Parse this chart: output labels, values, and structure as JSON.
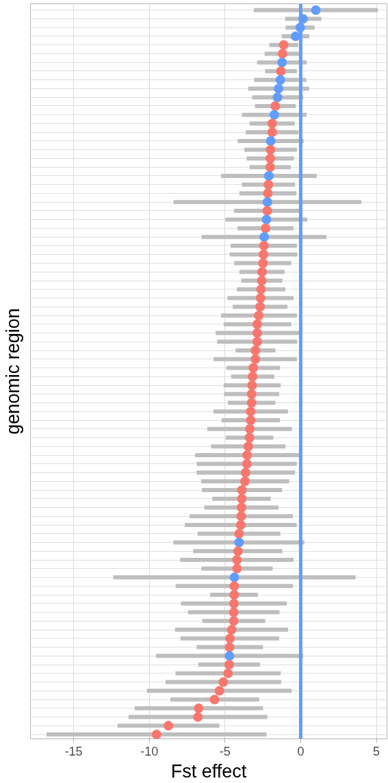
{
  "chart_data": {
    "type": "scatter",
    "orientation": "horizontal",
    "xlabel": "Fst effect",
    "ylabel": "genomic region",
    "categories": [
      null,
      null,
      null,
      null,
      null,
      null,
      null,
      null,
      null,
      null,
      null,
      null,
      null,
      null,
      null,
      null,
      null,
      null,
      null,
      null,
      null,
      null,
      null,
      null,
      null,
      null,
      null,
      null,
      null,
      null,
      null,
      null,
      null,
      null,
      null,
      null,
      null,
      null,
      null,
      null,
      null,
      null,
      null,
      null,
      null,
      null,
      null,
      null,
      null,
      null,
      null,
      null,
      null,
      null,
      null,
      null,
      null,
      null,
      null,
      null,
      null,
      null,
      null,
      null,
      null,
      null,
      null,
      null,
      null,
      null,
      null,
      null,
      null,
      null,
      null,
      null,
      null,
      null,
      null,
      null,
      null,
      null,
      null,
      null
    ],
    "values": [
      1.0,
      0.16,
      -0.03,
      -0.34,
      -1.12,
      -1.2,
      -1.23,
      -1.31,
      -1.34,
      -1.46,
      -1.53,
      -1.68,
      -1.74,
      -1.88,
      -1.88,
      -1.98,
      -1.99,
      -2.01,
      -2.02,
      -2.1,
      -2.13,
      -2.17,
      -2.2,
      -2.21,
      -2.26,
      -2.32,
      -2.41,
      -2.43,
      -2.46,
      -2.49,
      -2.55,
      -2.57,
      -2.62,
      -2.65,
      -2.68,
      -2.77,
      -2.87,
      -2.87,
      -2.87,
      -2.99,
      -2.99,
      -3.13,
      -3.18,
      -3.21,
      -3.24,
      -3.24,
      -3.3,
      -3.3,
      -3.36,
      -3.38,
      -3.46,
      -3.54,
      -3.55,
      -3.64,
      -3.68,
      -3.88,
      -3.89,
      -3.91,
      -3.93,
      -3.96,
      -4.07,
      -4.07,
      -4.14,
      -4.21,
      -4.21,
      -4.38,
      -4.39,
      -4.39,
      -4.41,
      -4.42,
      -4.42,
      -4.56,
      -4.67,
      -4.7,
      -4.7,
      -4.72,
      -4.8,
      -5.11,
      -5.37,
      -5.69,
      -6.74,
      -6.79,
      -8.74,
      -9.52
    ],
    "errors": [
      [
        -3.1,
        5.1
      ],
      [
        -1.03,
        1.36
      ],
      [
        -1.0,
        0.92
      ],
      [
        -1.25,
        0.58
      ],
      [
        -2.07,
        -0.16
      ],
      [
        -2.38,
        -0.11
      ],
      [
        -2.88,
        0.4
      ],
      [
        -2.34,
        -0.25
      ],
      [
        -3.07,
        0.37
      ],
      [
        -3.47,
        0.56
      ],
      [
        -3.21,
        0.17
      ],
      [
        -3.02,
        -0.33
      ],
      [
        -3.89,
        0.39
      ],
      [
        -3.38,
        -0.39
      ],
      [
        -3.63,
        -0.14
      ],
      [
        -4.16,
        0.2
      ],
      [
        -3.72,
        -0.25
      ],
      [
        -3.57,
        -0.44
      ],
      [
        -3.38,
        -0.65
      ],
      [
        -5.26,
        1.06
      ],
      [
        -3.89,
        -0.37
      ],
      [
        -4.05,
        -0.28
      ],
      [
        -8.4,
        4.0
      ],
      [
        -4.41,
        -0.11
      ],
      [
        -4.97,
        0.44
      ],
      [
        -4.17,
        -0.47
      ],
      [
        -6.54,
        1.7
      ],
      [
        -4.63,
        -0.25
      ],
      [
        -4.69,
        -0.22
      ],
      [
        -4.39,
        -0.62
      ],
      [
        -4.05,
        -1.06
      ],
      [
        -3.93,
        -1.21
      ],
      [
        -4.22,
        -1.01
      ],
      [
        -4.84,
        -0.47
      ],
      [
        -4.49,
        -0.87
      ],
      [
        -5.26,
        -0.25
      ],
      [
        -5.09,
        -0.62
      ],
      [
        -5.62,
        -0.11
      ],
      [
        -5.51,
        -0.23
      ],
      [
        -4.3,
        -1.67
      ],
      [
        -5.75,
        -0.25
      ],
      [
        -4.91,
        -1.36
      ],
      [
        -4.6,
        -1.74
      ],
      [
        -5.09,
        -1.32
      ],
      [
        -5.06,
        -1.42
      ],
      [
        -4.81,
        -1.67
      ],
      [
        -5.76,
        -0.84
      ],
      [
        -5.23,
        -1.37
      ],
      [
        -6.17,
        -0.58
      ],
      [
        -4.95,
        -1.81
      ],
      [
        -5.92,
        -1.0
      ],
      [
        -6.98,
        -0.11
      ],
      [
        -6.87,
        -0.25
      ],
      [
        -6.88,
        -0.37
      ],
      [
        -6.57,
        -0.76
      ],
      [
        -6.53,
        -1.23
      ],
      [
        -5.84,
        -1.98
      ],
      [
        -6.37,
        -1.46
      ],
      [
        -7.34,
        -0.51
      ],
      [
        -7.65,
        -0.26
      ],
      [
        -6.81,
        -1.34
      ],
      [
        -8.41,
        0.25
      ],
      [
        -7.1,
        -1.21
      ],
      [
        -7.96,
        -0.47
      ],
      [
        -6.56,
        -1.85
      ],
      [
        -12.38,
        3.63
      ],
      [
        -8.26,
        -0.51
      ],
      [
        -5.98,
        -2.83
      ],
      [
        -7.91,
        -0.92
      ],
      [
        -7.45,
        -1.4
      ],
      [
        -6.5,
        -2.35
      ],
      [
        -8.3,
        -0.83
      ],
      [
        -7.94,
        -1.42
      ],
      [
        -6.88,
        -2.49
      ],
      [
        -9.56,
        0.17
      ],
      [
        -6.76,
        -2.69
      ],
      [
        -8.27,
        -1.32
      ],
      [
        -8.93,
        -1.29
      ],
      [
        -10.16,
        -0.59
      ],
      [
        -8.61,
        -2.74
      ],
      [
        -10.97,
        -2.49
      ],
      [
        -11.37,
        -2.21
      ],
      [
        -12.1,
        -5.37
      ],
      [
        -16.79,
        -2.26
      ]
    ],
    "colors": [
      "#619cff",
      "#619cff",
      "#619cff",
      "#619cff",
      "#f8766d",
      "#f8766d",
      "#619cff",
      "#f8766d",
      "#619cff",
      "#619cff",
      "#619cff",
      "#f8766d",
      "#619cff",
      "#f8766d",
      "#f8766d",
      "#619cff",
      "#f8766d",
      "#f8766d",
      "#f8766d",
      "#619cff",
      "#f8766d",
      "#f8766d",
      "#619cff",
      "#f8766d",
      "#619cff",
      "#f8766d",
      "#619cff",
      "#f8766d",
      "#f8766d",
      "#f8766d",
      "#f8766d",
      "#f8766d",
      "#f8766d",
      "#f8766d",
      "#f8766d",
      "#f8766d",
      "#f8766d",
      "#f8766d",
      "#f8766d",
      "#f8766d",
      "#f8766d",
      "#f8766d",
      "#f8766d",
      "#f8766d",
      "#f8766d",
      "#f8766d",
      "#f8766d",
      "#f8766d",
      "#f8766d",
      "#f8766d",
      "#f8766d",
      "#f8766d",
      "#f8766d",
      "#f8766d",
      "#f8766d",
      "#f8766d",
      "#f8766d",
      "#f8766d",
      "#f8766d",
      "#f8766d",
      "#f8766d",
      "#619cff",
      "#f8766d",
      "#f8766d",
      "#f8766d",
      "#619cff",
      "#f8766d",
      "#f8766d",
      "#f8766d",
      "#f8766d",
      "#f8766d",
      "#f8766d",
      "#f8766d",
      "#f8766d",
      "#619cff",
      "#f8766d",
      "#f8766d",
      "#f8766d",
      "#f8766d",
      "#f8766d",
      "#f8766d",
      "#f8766d",
      "#f8766d",
      "#f8766d"
    ],
    "xlim": [
      -17.85,
      5.7
    ],
    "xticks": [
      -15,
      -10,
      -5,
      0,
      5
    ],
    "grid": true,
    "tick_labels": "x",
    "marker": "circle",
    "ref_lines": [
      {
        "axis": "x",
        "value": 0,
        "color": "#619cff"
      }
    ]
  }
}
